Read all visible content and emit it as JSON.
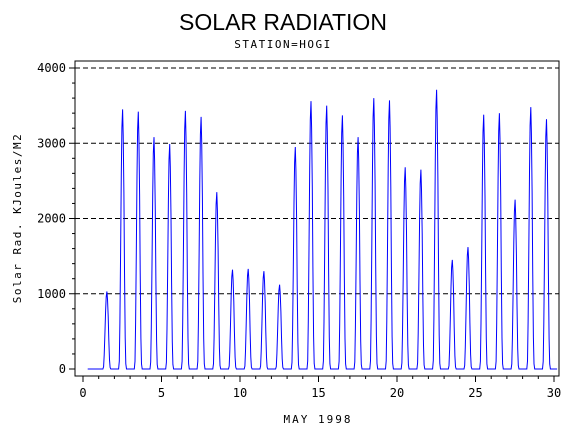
{
  "chart_data": {
    "type": "line",
    "title": "SOLAR RADIATION",
    "subtitle": "STATION=HOGI",
    "xlabel": "MAY 1998",
    "ylabel": "Solar Rad. KJoules/M2",
    "xlim": [
      0,
      30
    ],
    "ylim": [
      0,
      4000
    ],
    "x_ticks": [
      0,
      5,
      10,
      15,
      20,
      25,
      30
    ],
    "x_tick_labels": [
      "0",
      "5",
      "10",
      "15",
      "20",
      "25",
      "30"
    ],
    "y_ticks": [
      0,
      1000,
      2000,
      3000,
      4000
    ],
    "y_tick_labels": [
      "0",
      "1000",
      "2000",
      "3000",
      "4000"
    ],
    "grid": "horizontal dashed",
    "line_color": "#0000ff",
    "series": [
      {
        "daily_peaks": [
          {
            "day": 1,
            "peak": 1030
          },
          {
            "day": 2,
            "peak": 3450
          },
          {
            "day": 3,
            "peak": 3420
          },
          {
            "day": 4,
            "peak": 3080
          },
          {
            "day": 5,
            "peak": 2990
          },
          {
            "day": 6,
            "peak": 3430
          },
          {
            "day": 7,
            "peak": 3350
          },
          {
            "day": 8,
            "peak": 2350
          },
          {
            "day": 9,
            "peak": 1320
          },
          {
            "day": 10,
            "peak": 1330
          },
          {
            "day": 11,
            "peak": 1300
          },
          {
            "day": 12,
            "peak": 1120
          },
          {
            "day": 13,
            "peak": 2950
          },
          {
            "day": 14,
            "peak": 3560
          },
          {
            "day": 15,
            "peak": 3500
          },
          {
            "day": 16,
            "peak": 3370
          },
          {
            "day": 17,
            "peak": 3080
          },
          {
            "day": 18,
            "peak": 3600
          },
          {
            "day": 19,
            "peak": 3570
          },
          {
            "day": 20,
            "peak": 2680
          },
          {
            "day": 21,
            "peak": 2650
          },
          {
            "day": 22,
            "peak": 3710
          },
          {
            "day": 23,
            "peak": 1450
          },
          {
            "day": 24,
            "peak": 1620
          },
          {
            "day": 25,
            "peak": 3380
          },
          {
            "day": 26,
            "peak": 3400
          },
          {
            "day": 27,
            "peak": 2250
          },
          {
            "day": 28,
            "peak": 3480
          },
          {
            "day": 29,
            "peak": 3320
          }
        ]
      }
    ]
  }
}
